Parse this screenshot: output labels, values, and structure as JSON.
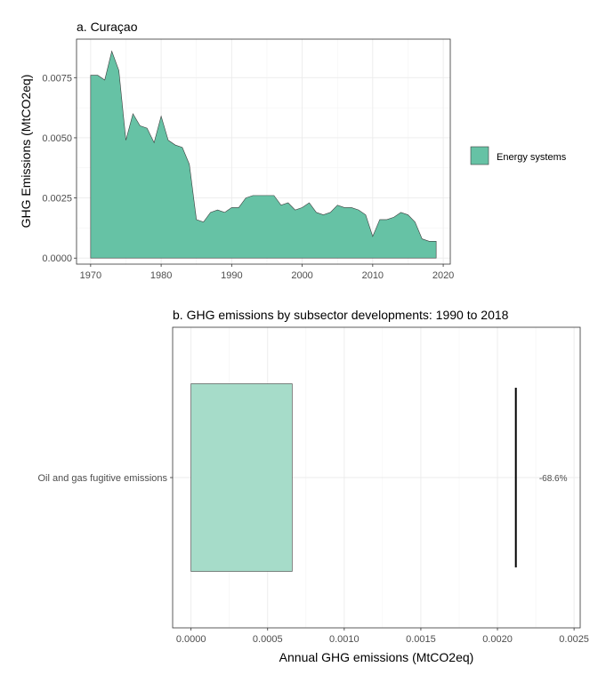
{
  "chart_data": [
    {
      "type": "area",
      "title": "a. Curaçao",
      "ylabel": "GHG Emissions (MtCO2eq)",
      "xlabel": "",
      "xlim": [
        1968,
        2021
      ],
      "ylim": [
        -0.00025,
        0.0091
      ],
      "x_ticks": [
        1970,
        1980,
        1990,
        2000,
        2010,
        2020
      ],
      "y_ticks": [
        0,
        0.0025,
        0.005,
        0.0075
      ],
      "y_tick_labels": [
        "0.0000",
        "0.0025",
        "0.0050",
        "0.0075"
      ],
      "grid": true,
      "legend_position": "right",
      "series": [
        {
          "name": "Energy systems",
          "color": "#66c2a5",
          "x": [
            1970,
            1971,
            1972,
            1973,
            1974,
            1975,
            1976,
            1977,
            1978,
            1979,
            1980,
            1981,
            1982,
            1983,
            1984,
            1985,
            1986,
            1987,
            1988,
            1989,
            1990,
            1991,
            1992,
            1993,
            1994,
            1995,
            1996,
            1997,
            1998,
            1999,
            2000,
            2001,
            2002,
            2003,
            2004,
            2005,
            2006,
            2007,
            2008,
            2009,
            2010,
            2011,
            2012,
            2013,
            2014,
            2015,
            2016,
            2017,
            2018,
            2019
          ],
          "values": [
            0.0076,
            0.0076,
            0.0074,
            0.0086,
            0.0078,
            0.0049,
            0.006,
            0.0055,
            0.0054,
            0.0048,
            0.0059,
            0.0049,
            0.0047,
            0.0046,
            0.0039,
            0.0016,
            0.0015,
            0.0019,
            0.002,
            0.0019,
            0.0021,
            0.0021,
            0.0025,
            0.0026,
            0.0026,
            0.0026,
            0.0026,
            0.0022,
            0.0023,
            0.002,
            0.0021,
            0.0023,
            0.0019,
            0.0018,
            0.0019,
            0.0022,
            0.0021,
            0.0021,
            0.002,
            0.0018,
            0.0009,
            0.0016,
            0.0016,
            0.0017,
            0.0019,
            0.0018,
            0.0015,
            0.0008,
            0.0007,
            0.0007
          ]
        }
      ]
    },
    {
      "type": "bar",
      "orientation": "horizontal",
      "title": "b. GHG emissions by subsector developments: 1990 to 2018",
      "xlabel": "Annual GHG emissions (MtCO2eq)",
      "ylabel": "",
      "xlim": [
        -0.00012,
        0.00254
      ],
      "x_ticks": [
        0,
        0.0005,
        0.001,
        0.0015,
        0.002,
        0.0025
      ],
      "x_tick_labels": [
        "0.0000",
        "0.0005",
        "0.0010",
        "0.0015",
        "0.0020",
        "0.0025"
      ],
      "grid": true,
      "categories": [
        "Oil and gas fugitive emissions"
      ],
      "values": [
        0.00066
      ],
      "bar_color": "#a6dcc9",
      "reference_value": 0.00212,
      "change_label": "-68.6%"
    }
  ]
}
